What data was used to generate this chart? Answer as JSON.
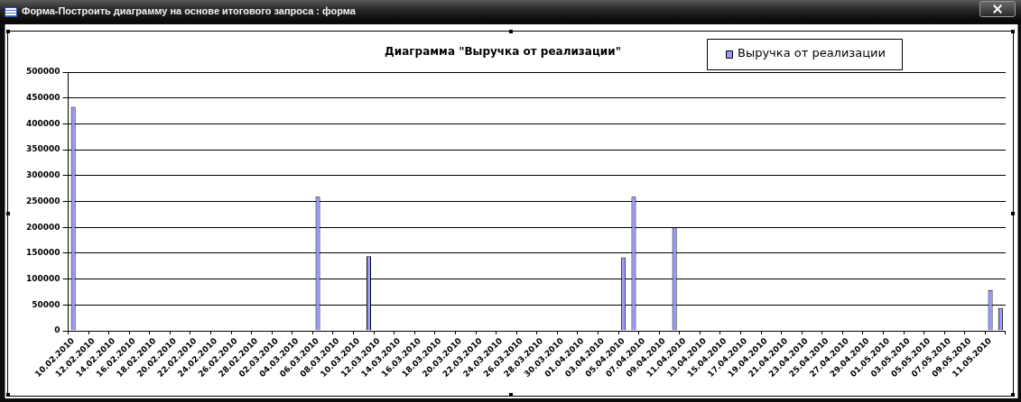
{
  "chart_data": {
    "type": "bar",
    "title": "Диаграмма \"Выручка от реализации\"",
    "annotations": [
      "Форма-Построить диаграмму на основе итогового запроса : форма"
    ],
    "categories": [
      "10.02.2010",
      null,
      "12.02.2010",
      null,
      "14.02.2010",
      null,
      "16.02.2010",
      null,
      "18.02.2010",
      null,
      "20.02.2010",
      null,
      "22.02.2010",
      null,
      "24.02.2010",
      null,
      "26.02.2010",
      null,
      "28.02.2010",
      null,
      "02.03.2010",
      null,
      "04.03.2010",
      null,
      "06.03.2010",
      null,
      "08.03.2010",
      null,
      "10.03.2010",
      null,
      "12.03.2010",
      null,
      "14.03.2010",
      null,
      "16.03.2010",
      null,
      "18.03.2010",
      null,
      "20.03.2010",
      null,
      "22.03.2010",
      null,
      "24.03.2010",
      null,
      "26.03.2010",
      null,
      "28.03.2010",
      null,
      "30.03.2010",
      null,
      "01.04.2010",
      null,
      "03.04.2010",
      null,
      "05.04.2010",
      null,
      "07.04.2010",
      null,
      "09.04.2010",
      null,
      "11.04.2010",
      null,
      "13.04.2010",
      null,
      "15.04.2010",
      null,
      "17.04.2010",
      null,
      "19.04.2010",
      null,
      "21.04.2010",
      null,
      "23.04.2010",
      null,
      "25.04.2010",
      null,
      "27.04.2010",
      null,
      "29.04.2010",
      null,
      "01.05.2010",
      null,
      "03.05.2010",
      null,
      "05.05.2010",
      null,
      "07.05.2010",
      null,
      "09.05.2010",
      null,
      "11.05.2010",
      null
    ],
    "series": [
      {
        "name": "Выручка от реализации",
        "color": "#9999ff",
        "values": [
          433000,
          null,
          null,
          null,
          null,
          null,
          null,
          null,
          null,
          null,
          null,
          null,
          null,
          null,
          null,
          null,
          null,
          null,
          null,
          null,
          null,
          null,
          null,
          null,
          259000,
          null,
          null,
          null,
          null,
          144000,
          null,
          null,
          null,
          null,
          null,
          null,
          null,
          null,
          null,
          null,
          null,
          null,
          null,
          null,
          null,
          null,
          null,
          null,
          null,
          null,
          null,
          null,
          null,
          null,
          142000,
          259000,
          null,
          null,
          null,
          200000,
          null,
          null,
          null,
          null,
          null,
          null,
          null,
          null,
          null,
          null,
          null,
          null,
          null,
          null,
          null,
          null,
          null,
          null,
          null,
          null,
          null,
          null,
          null,
          null,
          null,
          null,
          null,
          null,
          null,
          null,
          79000,
          44000
        ]
      }
    ],
    "ylim": [
      0,
      500000
    ],
    "yticks": [
      0,
      50000,
      100000,
      150000,
      200000,
      250000,
      300000,
      350000,
      400000,
      450000,
      500000
    ],
    "grid": "y",
    "legend": "top right"
  }
}
